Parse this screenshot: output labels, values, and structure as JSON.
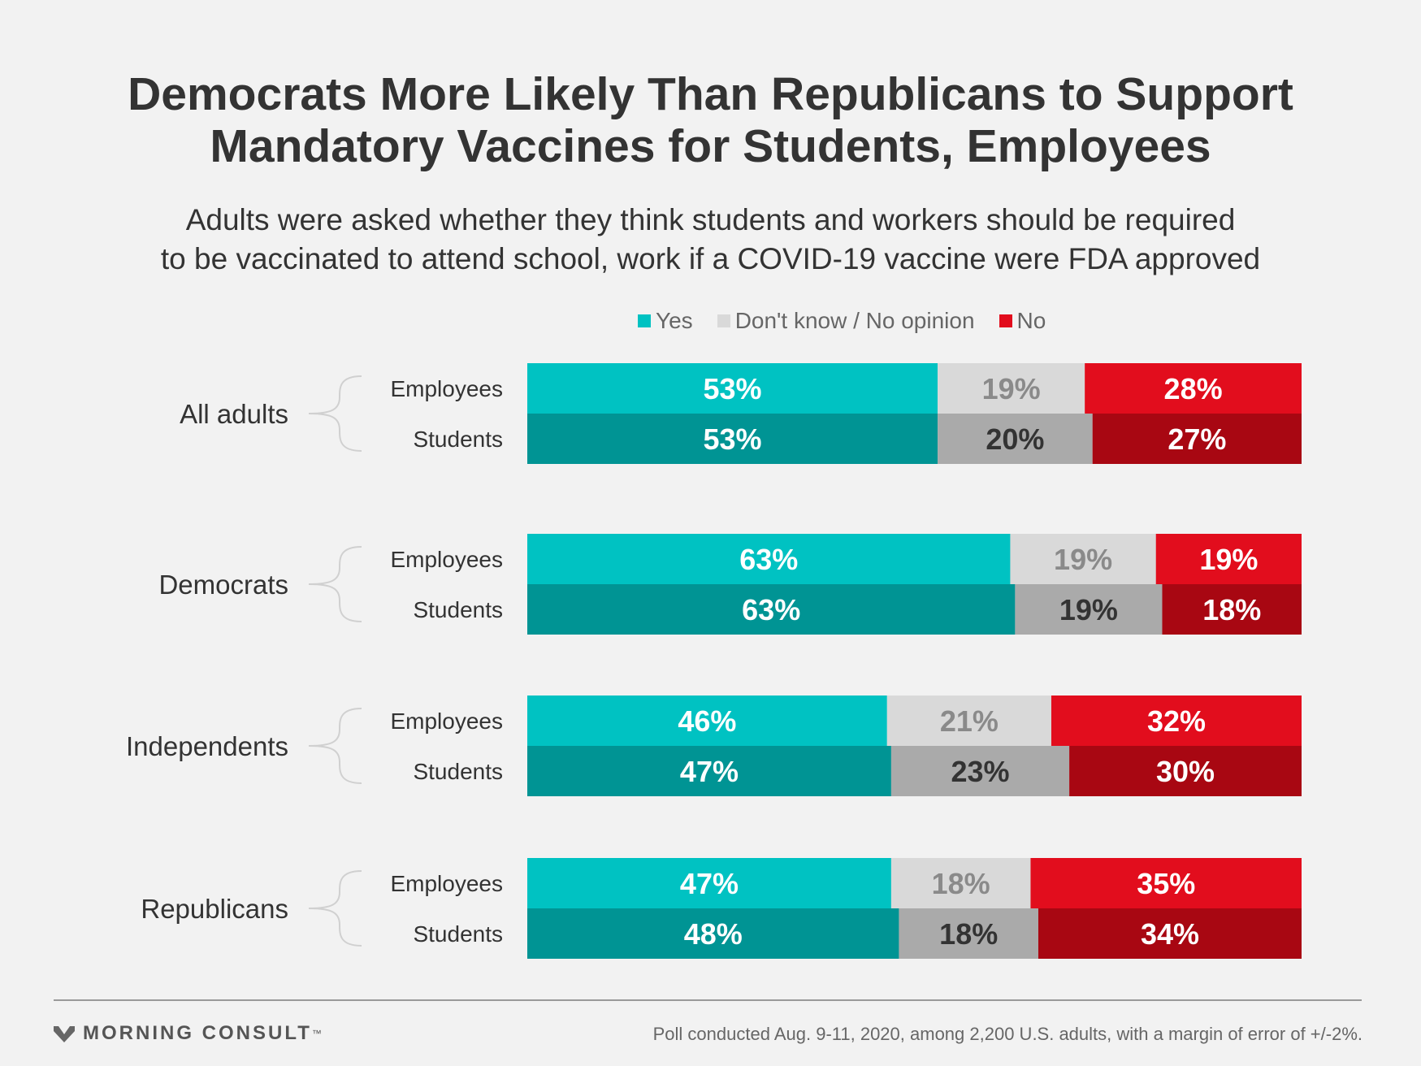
{
  "title_line1": "Democrats More Likely Than Republicans to Support",
  "title_line2": "Mandatory Vaccines for Students, Employees",
  "subtitle_line1": "Adults were asked whether they think students and workers should be required",
  "subtitle_line2": "to be vaccinated to attend school, work if a COVID-19 vaccine were FDA approved",
  "legend": [
    {
      "label": "Yes",
      "color": "#00c2c2"
    },
    {
      "label": "Don't know / No opinion",
      "color": "#d9d9d9"
    },
    {
      "label": "No",
      "color": "#e20d1d"
    }
  ],
  "source": "Poll conducted Aug. 9-11, 2020, among 2,200 U.S. adults, with a margin of error of +/-2%.",
  "logo_text": "MORNING CONSULT",
  "logo_mark": "™",
  "chart_data": {
    "type": "bar",
    "stacked": true,
    "orientation": "horizontal",
    "value_unit": "%",
    "series_names": [
      "Yes",
      "Don't know / No opinion",
      "No"
    ],
    "colors": {
      "Employees": [
        "#00c2c2",
        "#d9d9d9",
        "#e20d1d"
      ],
      "Students": [
        "#009494",
        "#aaaaaa",
        "#a80712"
      ],
      "label_colors_Employees": [
        "#ffffff",
        "#8a8a8a",
        "#ffffff"
      ],
      "label_colors_Students": [
        "#ffffff",
        "#333333",
        "#ffffff"
      ]
    },
    "groups": [
      {
        "name": "All adults",
        "rows": [
          {
            "label": "Employees",
            "values": [
              53,
              19,
              28
            ]
          },
          {
            "label": "Students",
            "values": [
              53,
              20,
              27
            ]
          }
        ]
      },
      {
        "name": "Democrats",
        "rows": [
          {
            "label": "Employees",
            "values": [
              63,
              19,
              19
            ]
          },
          {
            "label": "Students",
            "values": [
              63,
              19,
              18
            ]
          }
        ]
      },
      {
        "name": "Independents",
        "rows": [
          {
            "label": "Employees",
            "values": [
              46,
              21,
              32
            ]
          },
          {
            "label": "Students",
            "values": [
              47,
              23,
              30
            ]
          }
        ]
      },
      {
        "name": "Republicans",
        "rows": [
          {
            "label": "Employees",
            "values": [
              47,
              18,
              35
            ]
          },
          {
            "label": "Students",
            "values": [
              48,
              18,
              34
            ]
          }
        ]
      }
    ]
  }
}
